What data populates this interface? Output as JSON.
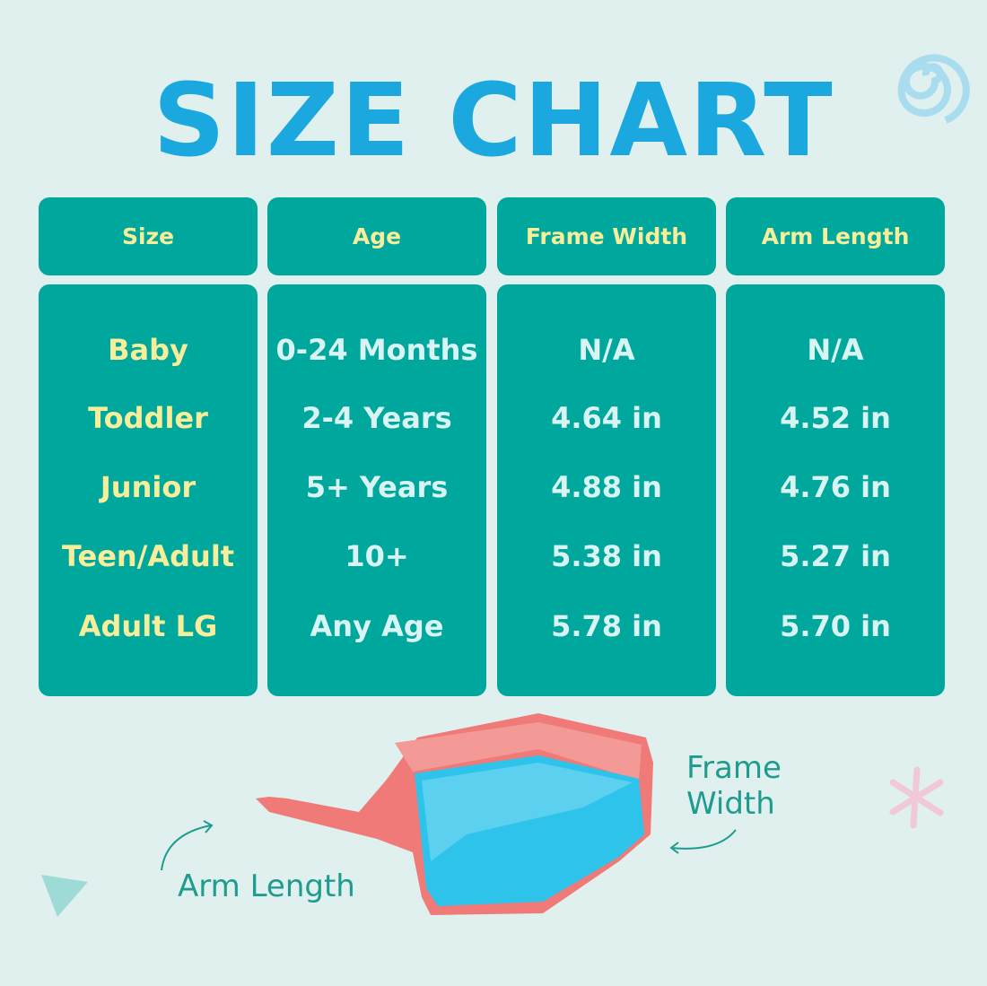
{
  "header": {
    "title": "SIZE CHART"
  },
  "table": {
    "columns": [
      "Size",
      "Age",
      "Frame Width",
      "Arm Length"
    ],
    "rows": [
      [
        "Baby",
        "0-24 Months",
        "N/A",
        "N/A"
      ],
      [
        "Toddler",
        "2-4 Years",
        "4.64 in",
        "4.52 in"
      ],
      [
        "Junior",
        "5+ Years",
        "4.88 in",
        "4.76 in"
      ],
      [
        "Teen/Adult",
        "10+",
        "5.38 in",
        "5.27 in"
      ],
      [
        "Adult LG",
        "Any Age",
        "5.78 in",
        "5.70 in"
      ]
    ]
  },
  "diagram": {
    "frame_label": "Frame Width",
    "arm_label": "Arm Length"
  }
}
